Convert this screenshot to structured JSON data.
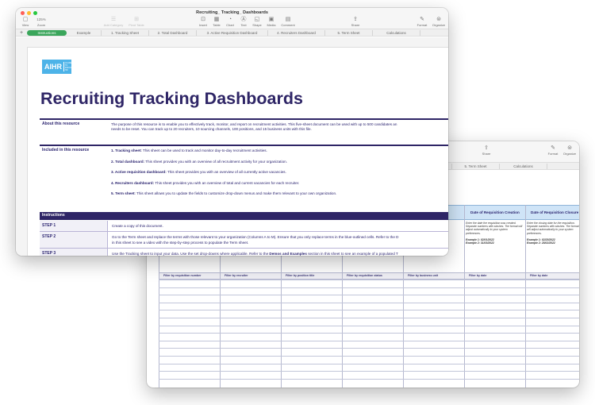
{
  "front_window": {
    "title": "Recruiting_ Tracking_ Dashboards",
    "toolbar": {
      "view": "View",
      "zoom_value": "125%",
      "zoom": "Zoom",
      "add_category": "Add Category",
      "pivot_table": "Pivot Table",
      "insert": "Insert",
      "table": "Table",
      "chart": "Chart",
      "text": "Text",
      "shape": "Shape",
      "media": "Media",
      "comment": "Comment",
      "share": "Share",
      "format": "Format",
      "organize": "Organize"
    },
    "tabs": [
      "Instructions",
      "Example",
      "1. Tracking Sheet",
      "2. Total Dashboard",
      "3. Active Requisition Dashboard",
      "4. Recruiters Dashboard",
      "5. Term Sheet",
      "Calculations"
    ],
    "active_tab": "Instructions",
    "logo": {
      "text": "AIHR",
      "sub": "ACADEMY TO INNOVATE HR",
      "color": "#4db3e8"
    },
    "page_title": "Recruiting Tracking Dashboards",
    "about": {
      "label": "About this resource",
      "lines": [
        "The purpose of this resource is to enable you to effectively track, monitor, and report on recruitment activities. This five-sheet document can be used with up to 500 candidates an",
        "needs to be reset. You can track up to 20 recruiters, 10 sourcing channels, 100 positions, and 15 business units with this file."
      ]
    },
    "included": {
      "label": "Included in this resource",
      "items": [
        {
          "name": "1. Tracking sheet:",
          "desc": "This sheet can be used to track and monitor day-to-day recruitment activities."
        },
        {
          "name": "2. Total dashboard:",
          "desc": "This sheet provides you with an overview of all recruitment activity for your organization."
        },
        {
          "name": "3. Active requisition dashboard:",
          "desc": "This sheet provides you with an overview of all currently active vacancies."
        },
        {
          "name": "4. Recruiters dashboard:",
          "desc": "This sheet provides you with an overview of total and current vacancies for each recruiter."
        },
        {
          "name": "5. Term sheet:",
          "desc": "This sheet allows you to update the fields to customize drop-down menus and make them relevant to your own organization."
        }
      ]
    },
    "instructions": {
      "header": "Instructions",
      "steps": [
        {
          "label": "STEP 1",
          "lines": [
            "Create a copy of this document."
          ]
        },
        {
          "label": "STEP 2",
          "lines": [
            "Go to the Term sheet and replace the terms with those relevant to your organization (Columns A to M). Ensure that you only replace terms in the blue-outlined cells. Refer to the D",
            "in this sheet to see a video with the step-by-step process to populate the Term sheet."
          ]
        },
        {
          "label": "STEP 3",
          "lines": [
            "Use the Tracking sheet to input your data. Use the set drop-downs where applicable. Refer to the ",
            "Demos and Examples",
            " section in this sheet to see an example of a populated T"
          ]
        }
      ]
    },
    "colors": {
      "brand": "#2e2566",
      "active_tab": "#3aa65b"
    }
  },
  "back_window": {
    "toolbar": {
      "share": "Share",
      "format": "Format",
      "organize": "Organize"
    },
    "tabs": [
      "rd",
      "5. Term Sheet",
      "Calculations"
    ],
    "columns": [
      {
        "header": "Date of Requisition Creation",
        "desc": "Enter the date the requisition was created. Separate numbers with slashes. The format will adjust automatically to your system preferences.",
        "ex1": "Example 1: 02/01/2022",
        "ex2": "Example 2: 31/03/2022"
      },
      {
        "header": "Date of Requisition Closure",
        "desc": "Enter the closing date for the requisition. Separate numbers with slashes. The format will adjust automatically to your system preferences.",
        "ex1": "Example 1: 02/28/2022",
        "ex2": "Example 2: 28/02/2022"
      }
    ],
    "filters": [
      "Filter by requisition number",
      "Filter by recruiter",
      "Filter by position title",
      "Filter by requisition status",
      "Filter by business unit",
      "Filter by date",
      "Filter by date"
    ],
    "header_color": "#cfe4f7"
  }
}
